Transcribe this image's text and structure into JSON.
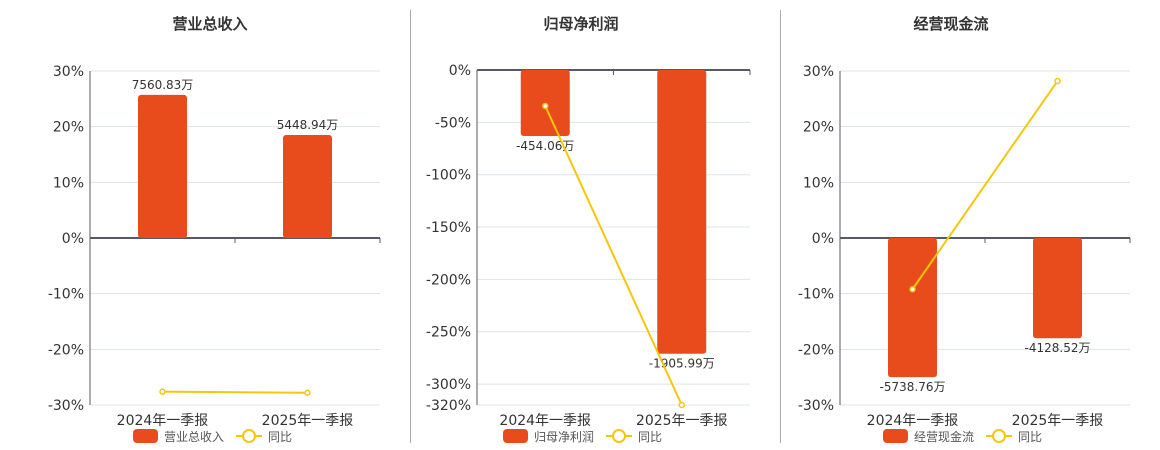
{
  "colors": {
    "bar": "#e84c1c",
    "line": "#f5c70a",
    "grid": "#dde3ec",
    "axis": "#555a66"
  },
  "legend": {
    "yoy_label": "同比"
  },
  "chart_data": [
    {
      "type": "bar+line",
      "title": "营业总收入",
      "categories": [
        "2024年一季报",
        "2025年一季报"
      ],
      "yticks": [
        "30%",
        "20%",
        "10%",
        "0%",
        "-10%",
        "-20%",
        "-30%"
      ],
      "ylim": [
        -30,
        30
      ],
      "series": [
        {
          "name": "营业总收入",
          "type": "bar",
          "values_pct_axis": [
            25.7,
            18.5
          ],
          "labels": [
            "7560.83万",
            "5448.94万"
          ]
        },
        {
          "name": "同比",
          "type": "line",
          "values": [
            -27.6,
            -27.8
          ]
        }
      ],
      "legend_position": "bottom"
    },
    {
      "type": "bar+line",
      "title": "归母净利润",
      "categories": [
        "2024年一季报",
        "2025年一季报"
      ],
      "yticks": [
        "0%",
        "-50%",
        "-100%",
        "-150%",
        "-200%",
        "-250%",
        "-300%",
        "-320%"
      ],
      "ylim": [
        -320,
        0
      ],
      "series": [
        {
          "name": "归母净利润",
          "type": "bar",
          "values_pct_axis": [
            -63,
            -271
          ],
          "labels": [
            "-454.06万",
            "-1905.99万"
          ]
        },
        {
          "name": "同比",
          "type": "line",
          "values": [
            -34.4,
            -320
          ]
        }
      ],
      "legend_position": "bottom"
    },
    {
      "type": "bar+line",
      "title": "经营现金流",
      "categories": [
        "2024年一季报",
        "2025年一季报"
      ],
      "yticks": [
        "30%",
        "20%",
        "10%",
        "0%",
        "-10%",
        "-20%",
        "-30%"
      ],
      "ylim": [
        -30,
        30
      ],
      "series": [
        {
          "name": "经营现金流",
          "type": "bar",
          "values_pct_axis": [
            -25,
            -18
          ],
          "labels": [
            "-5738.76万",
            "-4128.52万"
          ]
        },
        {
          "name": "同比",
          "type": "line",
          "values": [
            -9.2,
            28.2
          ]
        }
      ],
      "legend_position": "bottom"
    }
  ]
}
